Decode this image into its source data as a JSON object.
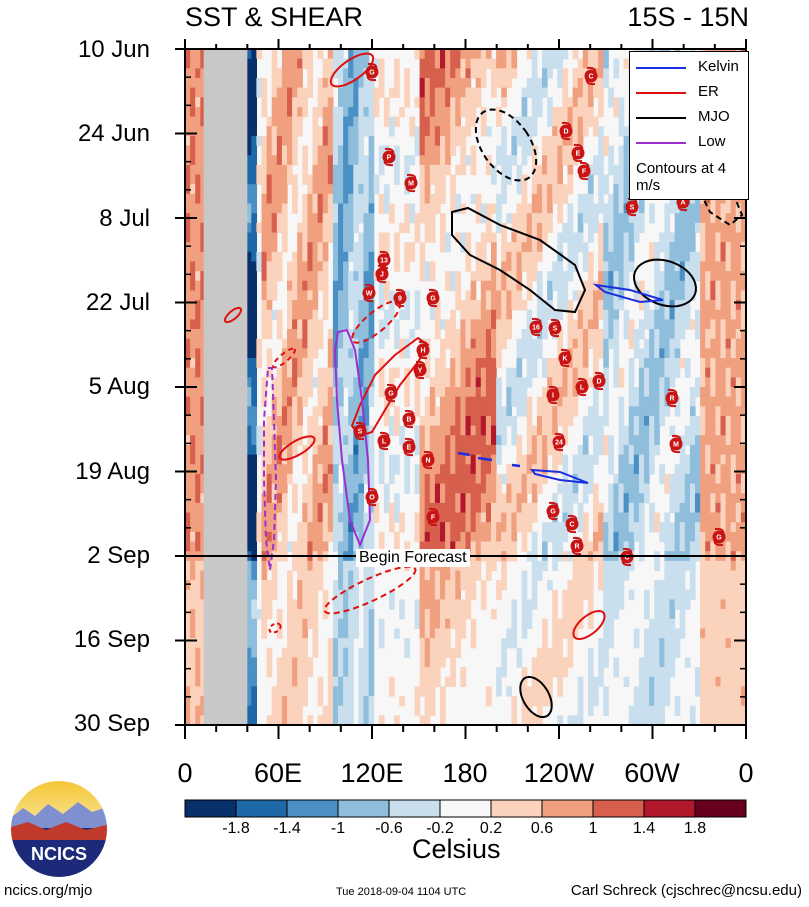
{
  "header": {
    "left_title": "SST & SHEAR",
    "right_title": "15S - 15N"
  },
  "chart_data": {
    "type": "heatmap",
    "title": "SST & SHEAR",
    "region": "15S - 15N",
    "y_ticks": [
      "10 Jun",
      "24 Jun",
      "8 Jul",
      "22 Jul",
      "5 Aug",
      "19 Aug",
      "2 Sep",
      "16 Sep",
      "30 Sep"
    ],
    "x_ticks": [
      "0",
      "60E",
      "120E",
      "180",
      "120W",
      "60W",
      "0"
    ],
    "xlim_deg_east": [
      0,
      360
    ],
    "forecast_start": "2 Sep",
    "forecast_label": "Begin Forecast",
    "colorbar": {
      "title": "Celsius",
      "levels": [
        "-1.8",
        "-1.4",
        "-1",
        "-0.6",
        "-0.2",
        "0.2",
        "0.6",
        "1",
        "1.4",
        "1.8"
      ],
      "colors": [
        "#08306b",
        "#1f68a8",
        "#4a90c4",
        "#8fbedc",
        "#c9dfee",
        "#f7f7f7",
        "#fbd2bc",
        "#f0a07f",
        "#d6604d",
        "#b2182b",
        "#67001f"
      ]
    },
    "legend": {
      "entries": [
        {
          "name": "Kelvin",
          "color": "#1a2fe0"
        },
        {
          "name": "ER",
          "color": "#e01010"
        },
        {
          "name": "MJO",
          "color": "#000000"
        },
        {
          "name": "Low",
          "color": "#9b30d0"
        }
      ],
      "note": "Contours at 4 m/s",
      "position": "top-right"
    },
    "storm_labels": [
      "G",
      "C",
      "D",
      "E",
      "F",
      "P",
      "M",
      "S",
      "A",
      "13",
      "J",
      "W",
      "9",
      "G",
      "16",
      "S",
      "H",
      "Y",
      "K",
      "G",
      "I",
      "L",
      "D",
      "B",
      "R",
      "S",
      "L",
      "E",
      "24",
      "M",
      "N",
      "O",
      "F",
      "G",
      "C",
      "R"
    ]
  },
  "footer": {
    "left": "ncics.org/mjo",
    "center": "Tue 2018-09-04 1104 UTC",
    "right": "Carl Schreck (cjschrec@ncsu.edu)",
    "logo_text": "NCICS"
  }
}
